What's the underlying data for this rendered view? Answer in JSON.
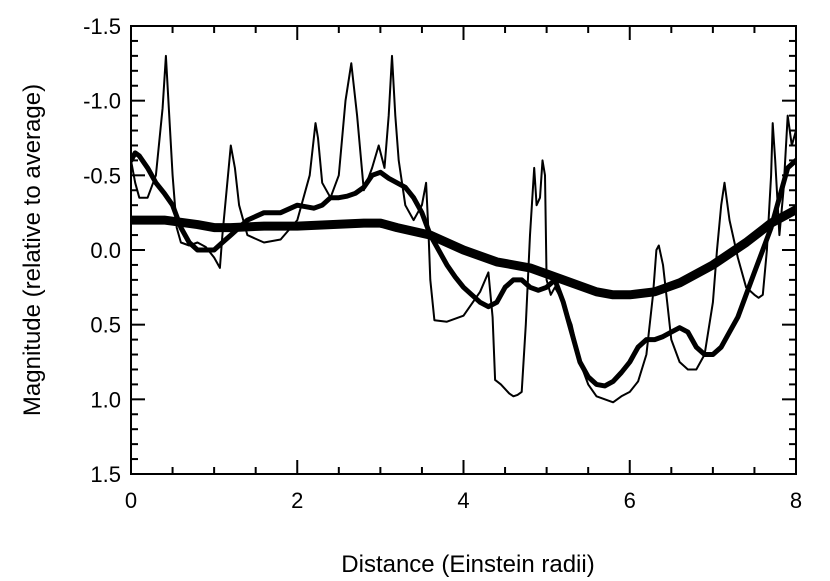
{
  "chart_data": {
    "type": "line",
    "title": "",
    "xlabel": "Distance (Einstein radii)",
    "ylabel": "Magnitude (relative to average)",
    "xlim": [
      0,
      8
    ],
    "ylim": [
      1.5,
      -1.5
    ],
    "y_inverted": true,
    "grid": false,
    "x_ticks": [
      0,
      2,
      4,
      6,
      8
    ],
    "x_tick_labels": [
      "0",
      "2",
      "4",
      "6",
      "8"
    ],
    "y_ticks": [
      -1.5,
      -1.0,
      -0.5,
      0.0,
      0.5,
      1.0,
      1.5
    ],
    "y_tick_labels": [
      "-1.5",
      "-1.0",
      "-0.5",
      "0.0",
      "0.5",
      "1.0",
      "1.5"
    ],
    "series": [
      {
        "line_style": "thin",
        "color": "#000000",
        "x": [
          0,
          0.05,
          0.1,
          0.2,
          0.3,
          0.38,
          0.42,
          0.45,
          0.5,
          0.55,
          0.6,
          0.7,
          0.8,
          0.9,
          1.0,
          1.07,
          1.1,
          1.15,
          1.2,
          1.25,
          1.3,
          1.4,
          1.6,
          1.8,
          2.0,
          2.15,
          2.22,
          2.25,
          2.3,
          2.4,
          2.5,
          2.58,
          2.65,
          2.72,
          2.8,
          2.9,
          2.98,
          3.05,
          3.1,
          3.14,
          3.18,
          3.22,
          3.3,
          3.4,
          3.5,
          3.55,
          3.58,
          3.6,
          3.65,
          3.8,
          4.0,
          4.2,
          4.3,
          4.35,
          4.38,
          4.45,
          4.55,
          4.6,
          4.65,
          4.7,
          4.75,
          4.8,
          4.85,
          4.88,
          4.92,
          4.95,
          4.98,
          5.0,
          5.05,
          5.1,
          5.2,
          5.3,
          5.4,
          5.5,
          5.6,
          5.7,
          5.8,
          5.9,
          6.0,
          6.1,
          6.2,
          6.28,
          6.32,
          6.35,
          6.4,
          6.45,
          6.5,
          6.6,
          6.7,
          6.8,
          6.9,
          7.0,
          7.05,
          7.1,
          7.14,
          7.2,
          7.3,
          7.4,
          7.5,
          7.55,
          7.6,
          7.65,
          7.7,
          7.72,
          7.75,
          7.8,
          7.85,
          7.9,
          7.95,
          8.0
        ],
        "y": [
          -0.6,
          -0.45,
          -0.35,
          -0.35,
          -0.5,
          -0.95,
          -1.3,
          -1.0,
          -0.5,
          -0.15,
          -0.05,
          -0.03,
          -0.05,
          -0.02,
          0.05,
          0.12,
          -0.1,
          -0.4,
          -0.7,
          -0.55,
          -0.3,
          -0.1,
          -0.05,
          -0.07,
          -0.2,
          -0.5,
          -0.85,
          -0.75,
          -0.45,
          -0.35,
          -0.5,
          -1.0,
          -1.25,
          -0.9,
          -0.4,
          -0.55,
          -0.7,
          -0.55,
          -0.9,
          -1.3,
          -0.9,
          -0.6,
          -0.3,
          -0.2,
          -0.3,
          -0.45,
          -0.1,
          0.2,
          0.47,
          0.48,
          0.44,
          0.28,
          0.15,
          0.45,
          0.87,
          0.9,
          0.96,
          0.98,
          0.97,
          0.95,
          0.5,
          -0.1,
          -0.55,
          -0.3,
          -0.35,
          -0.6,
          -0.5,
          0.2,
          0.3,
          0.25,
          0.35,
          0.5,
          0.75,
          0.9,
          0.98,
          1.0,
          1.02,
          0.98,
          0.95,
          0.88,
          0.7,
          0.3,
          0.0,
          -0.03,
          0.1,
          0.35,
          0.6,
          0.75,
          0.8,
          0.8,
          0.7,
          0.35,
          0.0,
          -0.3,
          -0.45,
          -0.2,
          0.05,
          0.25,
          0.3,
          0.32,
          0.3,
          0.0,
          -0.5,
          -0.85,
          -0.6,
          -0.1,
          -0.4,
          -0.9,
          -0.7,
          -0.8
        ]
      },
      {
        "line_style": "medium",
        "color": "#000000",
        "x": [
          0,
          0.05,
          0.1,
          0.2,
          0.3,
          0.4,
          0.5,
          0.6,
          0.7,
          0.8,
          0.9,
          1.0,
          1.1,
          1.2,
          1.3,
          1.4,
          1.6,
          1.8,
          2.0,
          2.2,
          2.3,
          2.4,
          2.5,
          2.6,
          2.7,
          2.8,
          2.9,
          3.0,
          3.1,
          3.2,
          3.3,
          3.4,
          3.5,
          3.6,
          3.7,
          3.8,
          3.9,
          4.0,
          4.1,
          4.2,
          4.3,
          4.4,
          4.5,
          4.6,
          4.7,
          4.8,
          4.9,
          5.0,
          5.1,
          5.2,
          5.3,
          5.4,
          5.5,
          5.6,
          5.7,
          5.8,
          5.9,
          6.0,
          6.1,
          6.2,
          6.3,
          6.4,
          6.5,
          6.6,
          6.7,
          6.8,
          6.9,
          7.0,
          7.1,
          7.2,
          7.3,
          7.4,
          7.5,
          7.6,
          7.7,
          7.8,
          7.9,
          8.0
        ],
        "y": [
          -0.6,
          -0.65,
          -0.63,
          -0.55,
          -0.45,
          -0.38,
          -0.3,
          -0.15,
          -0.05,
          0.0,
          0.0,
          0.0,
          -0.05,
          -0.1,
          -0.15,
          -0.2,
          -0.25,
          -0.25,
          -0.3,
          -0.28,
          -0.3,
          -0.35,
          -0.35,
          -0.36,
          -0.38,
          -0.42,
          -0.5,
          -0.52,
          -0.48,
          -0.45,
          -0.42,
          -0.35,
          -0.25,
          -0.1,
          0.0,
          0.1,
          0.18,
          0.25,
          0.3,
          0.35,
          0.38,
          0.35,
          0.25,
          0.2,
          0.2,
          0.25,
          0.27,
          0.25,
          0.2,
          0.35,
          0.55,
          0.75,
          0.85,
          0.9,
          0.91,
          0.88,
          0.82,
          0.75,
          0.65,
          0.6,
          0.6,
          0.58,
          0.55,
          0.52,
          0.55,
          0.65,
          0.7,
          0.7,
          0.65,
          0.55,
          0.45,
          0.3,
          0.15,
          0.0,
          -0.15,
          -0.35,
          -0.55,
          -0.6
        ]
      },
      {
        "line_style": "thick",
        "color": "#000000",
        "x": [
          0,
          0.4,
          0.8,
          1.0,
          1.2,
          1.6,
          2.0,
          2.4,
          2.8,
          3.0,
          3.2,
          3.6,
          4.0,
          4.4,
          4.8,
          5.2,
          5.6,
          5.8,
          6.0,
          6.3,
          6.6,
          7.0,
          7.4,
          7.7,
          8.0
        ],
        "y": [
          -0.2,
          -0.2,
          -0.17,
          -0.15,
          -0.15,
          -0.16,
          -0.16,
          -0.17,
          -0.18,
          -0.18,
          -0.15,
          -0.1,
          0.0,
          0.08,
          0.12,
          0.2,
          0.28,
          0.3,
          0.3,
          0.28,
          0.22,
          0.1,
          -0.05,
          -0.18,
          -0.27
        ]
      }
    ]
  }
}
